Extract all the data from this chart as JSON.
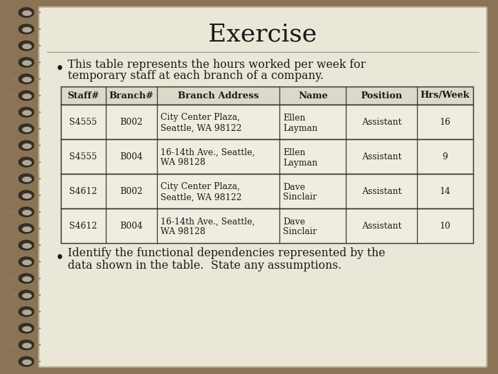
{
  "title": "Exercise",
  "bullet1_line1": "This table represents the hours worked per week for",
  "bullet1_line2": "temporary staff at each branch of a company.",
  "bullet2_line1": "Identify the functional dependencies represented by the",
  "bullet2_line2": "data shown in the table.  State any assumptions.",
  "table_headers": [
    "Staff#",
    "Branch#",
    "Branch Address",
    "Name",
    "Position",
    "Hrs/Week"
  ],
  "table_rows": [
    [
      "S4555",
      "B002",
      "City Center Plaza,\nSeattle, WA 98122",
      "Ellen\nLayman",
      "Assistant",
      "16"
    ],
    [
      "S4555",
      "B004",
      "16-14th Ave., Seattle,\nWA 98128",
      "Ellen\nLayman",
      "Assistant",
      "9"
    ],
    [
      "S4612",
      "B002",
      "City Center Plaza,\nSeattle, WA 98122",
      "Dave\nSinclair",
      "Assistant",
      "14"
    ],
    [
      "S4612",
      "B004",
      "16-14th Ave., Seattle,\nWA 98128",
      "Dave\nSinclair",
      "Assistant",
      "10"
    ]
  ],
  "addr_superscript_rows": [
    1,
    3
  ],
  "bg_outer": "#8B7355",
  "bg_page": "#EAE6D8",
  "text_color": "#1a1a1a",
  "title_fontsize": 26,
  "body_fontsize": 11.5,
  "table_fontsize": 9,
  "header_fontsize": 9.5
}
